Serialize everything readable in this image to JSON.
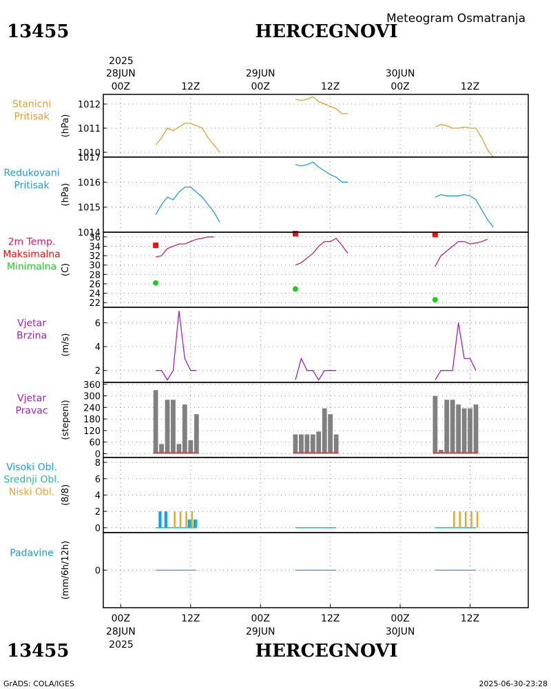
{
  "header": {
    "station_id": "13455",
    "station_name": "HERCEGNOVI",
    "product": "Meteogram Osmatranja"
  },
  "footer": {
    "credit": "GrADS: COLA/IGES",
    "timestamp": "2025-06-30-23:28"
  },
  "time_axis": {
    "year": "2025",
    "ticks": [
      {
        "hour": 0,
        "label": "00Z",
        "day": "28JUN"
      },
      {
        "hour": 12,
        "label": "12Z",
        "day": ""
      },
      {
        "hour": 24,
        "label": "00Z",
        "day": "29JUN"
      },
      {
        "hour": 36,
        "label": "12Z",
        "day": ""
      },
      {
        "hour": 48,
        "label": "00Z",
        "day": "30JUN"
      },
      {
        "hour": 60,
        "label": "12Z",
        "day": ""
      }
    ],
    "range_hours": [
      -3,
      70
    ]
  },
  "colors": {
    "pressure_station": "#e0a030",
    "pressure_reduced": "#1fa0d0",
    "temp": "#c0206a",
    "tmax": "#ee1010",
    "tmin": "#20cc20",
    "wind": "#a020c0",
    "bars": "#808080",
    "bar_base": "#d04040",
    "cloud_high": "#10a0e8",
    "cloud_mid": "#20c0a0",
    "cloud_low": "#e0a830",
    "precip": "#20a0c0"
  },
  "chart_data": [
    {
      "id": "station_pressure",
      "type": "line",
      "label_lines": [
        "Stanicni",
        "Pritisak"
      ],
      "ylabel": "(hPa)",
      "ylim": [
        1009.8,
        1012.4
      ],
      "yticks": [
        1010,
        1011,
        1012
      ],
      "series": [
        {
          "name": "Stanicni Pritisak",
          "color_key": "pressure_station",
          "segments": [
            [
              [
                6,
                1010.3
              ],
              [
                7,
                1010.6
              ],
              [
                8,
                1011.0
              ],
              [
                9,
                1010.9
              ],
              [
                10,
                1011.05
              ],
              [
                11,
                1011.2
              ],
              [
                12,
                1011.2
              ],
              [
                13,
                1011.1
              ],
              [
                14,
                1011.0
              ],
              [
                15,
                1010.6
              ],
              [
                16,
                1010.3
              ],
              [
                17,
                1010.0
              ]
            ],
            [
              [
                30,
                1012.2
              ],
              [
                31,
                1012.15
              ],
              [
                32,
                1012.2
              ],
              [
                33,
                1012.3
              ],
              [
                34,
                1012.1
              ],
              [
                35,
                1012.0
              ],
              [
                36,
                1011.9
              ],
              [
                37,
                1011.8
              ],
              [
                38,
                1011.6
              ],
              [
                39,
                1011.6
              ]
            ],
            [
              [
                54,
                1011.05
              ],
              [
                55,
                1011.15
              ],
              [
                56,
                1011.1
              ],
              [
                57,
                1011.0
              ],
              [
                58,
                1011.0
              ],
              [
                59,
                1011.05
              ],
              [
                60,
                1011.0
              ],
              [
                61,
                1011.0
              ],
              [
                62,
                1010.6
              ],
              [
                63,
                1010.1
              ],
              [
                64,
                1009.8
              ]
            ]
          ]
        }
      ]
    },
    {
      "id": "reduced_pressure",
      "type": "line",
      "label_lines": [
        "Redukovani",
        "Pritisak"
      ],
      "ylabel": "(hPa)",
      "ylim": [
        1014.0,
        1017.0
      ],
      "yticks": [
        1014,
        1015,
        1016,
        1017
      ],
      "series": [
        {
          "name": "Redukovani Pritisak",
          "color_key": "pressure_reduced",
          "segments": [
            [
              [
                6,
                1014.7
              ],
              [
                7,
                1015.1
              ],
              [
                8,
                1015.4
              ],
              [
                9,
                1015.3
              ],
              [
                10,
                1015.6
              ],
              [
                11,
                1015.8
              ],
              [
                12,
                1015.8
              ],
              [
                13,
                1015.6
              ],
              [
                14,
                1015.4
              ],
              [
                15,
                1015.1
              ],
              [
                16,
                1014.8
              ],
              [
                17,
                1014.4
              ]
            ],
            [
              [
                30,
                1016.7
              ],
              [
                31,
                1016.65
              ],
              [
                32,
                1016.7
              ],
              [
                33,
                1016.8
              ],
              [
                34,
                1016.6
              ],
              [
                35,
                1016.45
              ],
              [
                36,
                1016.3
              ],
              [
                37,
                1016.2
              ],
              [
                38,
                1016.0
              ],
              [
                39,
                1016.0
              ]
            ],
            [
              [
                54,
                1015.4
              ],
              [
                55,
                1015.5
              ],
              [
                56,
                1015.45
              ],
              [
                57,
                1015.45
              ],
              [
                58,
                1015.45
              ],
              [
                59,
                1015.5
              ],
              [
                60,
                1015.45
              ],
              [
                61,
                1015.3
              ],
              [
                62,
                1014.9
              ],
              [
                63,
                1014.5
              ],
              [
                64,
                1014.2
              ]
            ]
          ]
        }
      ]
    },
    {
      "id": "temperature",
      "type": "line",
      "label_lines": [
        "2m Temp.",
        "Maksimalna",
        "Minimalna"
      ],
      "ylabel": "(C)",
      "ylim": [
        21,
        37
      ],
      "yticks": [
        22,
        24,
        26,
        28,
        30,
        32,
        34,
        36
      ],
      "series": [
        {
          "name": "2m Temp.",
          "color_key": "temp",
          "segments": [
            [
              [
                6,
                31.7
              ],
              [
                7,
                32
              ],
              [
                8,
                33.5
              ],
              [
                9,
                34
              ],
              [
                10,
                34.5
              ],
              [
                11,
                34.5
              ],
              [
                12,
                35
              ],
              [
                13,
                35.5
              ],
              [
                14,
                35.7
              ],
              [
                15,
                36
              ],
              [
                16,
                36
              ]
            ],
            [
              [
                30,
                30
              ],
              [
                31,
                30.5
              ],
              [
                32,
                31.5
              ],
              [
                33,
                32.5
              ],
              [
                34,
                34
              ],
              [
                35,
                35
              ],
              [
                36,
                35
              ],
              [
                37,
                35.7
              ],
              [
                38,
                34.2
              ],
              [
                39,
                32.5
              ]
            ],
            [
              [
                54,
                29.7
              ],
              [
                55,
                32
              ],
              [
                56,
                33
              ],
              [
                57,
                34
              ],
              [
                58,
                35
              ],
              [
                59,
                35
              ],
              [
                60,
                34.5
              ],
              [
                61,
                34.7
              ],
              [
                62,
                35
              ],
              [
                63,
                35.5
              ]
            ]
          ]
        }
      ],
      "markers": [
        {
          "name": "Maksimalna",
          "color_key": "tmax",
          "shape": "square",
          "points": [
            [
              6,
              34.2
            ],
            [
              30,
              36.7
            ],
            [
              54,
              36.5
            ]
          ]
        },
        {
          "name": "Minimalna",
          "color_key": "tmin",
          "shape": "circle",
          "points": [
            [
              6,
              26.2
            ],
            [
              30,
              24.9
            ],
            [
              54,
              22.6
            ]
          ]
        }
      ]
    },
    {
      "id": "wind_speed",
      "type": "line",
      "label_lines": [
        "Vjetar",
        "Brzina"
      ],
      "ylabel": "(m/s)",
      "ylim": [
        1,
        7.3
      ],
      "yticks": [
        2,
        4,
        6
      ],
      "series": [
        {
          "name": "Vjetar Brzina",
          "color_key": "wind",
          "segments": [
            [
              [
                6,
                2
              ],
              [
                7,
                2
              ],
              [
                8,
                1.2
              ],
              [
                9,
                2
              ],
              [
                10,
                7
              ],
              [
                11,
                3
              ],
              [
                12,
                2
              ],
              [
                13,
                2
              ]
            ],
            [
              [
                30,
                1.2
              ],
              [
                31,
                3
              ],
              [
                32,
                2
              ],
              [
                33,
                2
              ],
              [
                34,
                1.2
              ],
              [
                35,
                2
              ],
              [
                36,
                2
              ],
              [
                37,
                2
              ]
            ],
            [
              [
                54,
                1.2
              ],
              [
                55,
                2
              ],
              [
                56,
                2
              ],
              [
                57,
                2
              ],
              [
                58,
                6
              ],
              [
                59,
                3
              ],
              [
                60,
                3
              ],
              [
                61,
                2
              ]
            ]
          ]
        }
      ]
    },
    {
      "id": "wind_direction",
      "type": "bar",
      "label_lines": [
        "Vjetar",
        "Pravac"
      ],
      "ylabel": "(stepeni)",
      "ylim": [
        -20,
        370
      ],
      "yticks": [
        0,
        60,
        120,
        180,
        240,
        300,
        360
      ],
      "bar_width_hours": 0.8,
      "series": [
        {
          "name": "Vjetar Pravac",
          "color_key": "bars",
          "points": [
            [
              6,
              330
            ],
            [
              7,
              50
            ],
            [
              8,
              280
            ],
            [
              9,
              280
            ],
            [
              10,
              50
            ],
            [
              11,
              255
            ],
            [
              12,
              70
            ],
            [
              13,
              205
            ],
            [
              30,
              100
            ],
            [
              31,
              100
            ],
            [
              32,
              100
            ],
            [
              33,
              100
            ],
            [
              34,
              115
            ],
            [
              35,
              235
            ],
            [
              36,
              205
            ],
            [
              37,
              100
            ],
            [
              54,
              300
            ],
            [
              55,
              20
            ],
            [
              56,
              280
            ],
            [
              57,
              280
            ],
            [
              58,
              255
            ],
            [
              59,
              235
            ],
            [
              60,
              235
            ],
            [
              61,
              255
            ]
          ]
        }
      ]
    },
    {
      "id": "cloud_cover",
      "type": "bar",
      "label_lines": [
        "Visoki Obl.",
        "Srednji Obl.",
        "Niski Obl."
      ],
      "ylabel": "(8/8)",
      "ylim": [
        -0.6,
        8.6
      ],
      "yticks": [
        0,
        2,
        4,
        6,
        8
      ],
      "series": [
        {
          "name": "Visoki Obl.",
          "color_key": "cloud_high",
          "points": [
            [
              7,
              2
            ],
            [
              8,
              2
            ],
            [
              12,
              1
            ],
            [
              13,
              1
            ]
          ]
        },
        {
          "name": "Srednji Obl.",
          "color_key": "cloud_mid",
          "points": [
            [
              12,
              1
            ],
            [
              13,
              1
            ]
          ]
        },
        {
          "name": "Niski Obl.",
          "color_key": "cloud_low",
          "points": [
            [
              9,
              2
            ],
            [
              10,
              2
            ],
            [
              11,
              2
            ],
            [
              12,
              2
            ],
            [
              57,
              2
            ],
            [
              58,
              2
            ],
            [
              59,
              2
            ],
            [
              60,
              2
            ],
            [
              61,
              2
            ]
          ]
        }
      ],
      "zero_lines": [
        [
          6,
          13
        ],
        [
          30,
          37
        ],
        [
          54,
          61
        ]
      ]
    },
    {
      "id": "precipitation",
      "type": "line",
      "label_lines": [
        "Padavine"
      ],
      "ylabel": "(mm/6h/12h)",
      "ylim": [
        -4.5,
        4.5
      ],
      "yticks": [
        0
      ],
      "series": [
        {
          "name": "Padavine",
          "color_key": "precip",
          "segments": [
            [
              [
                6,
                0
              ],
              [
                9,
                0
              ],
              [
                13,
                0
              ]
            ],
            [
              [
                30,
                0
              ],
              [
                34,
                0
              ],
              [
                37,
                0
              ]
            ],
            [
              [
                54,
                0
              ],
              [
                58,
                0
              ],
              [
                61,
                0
              ]
            ]
          ]
        }
      ]
    }
  ]
}
